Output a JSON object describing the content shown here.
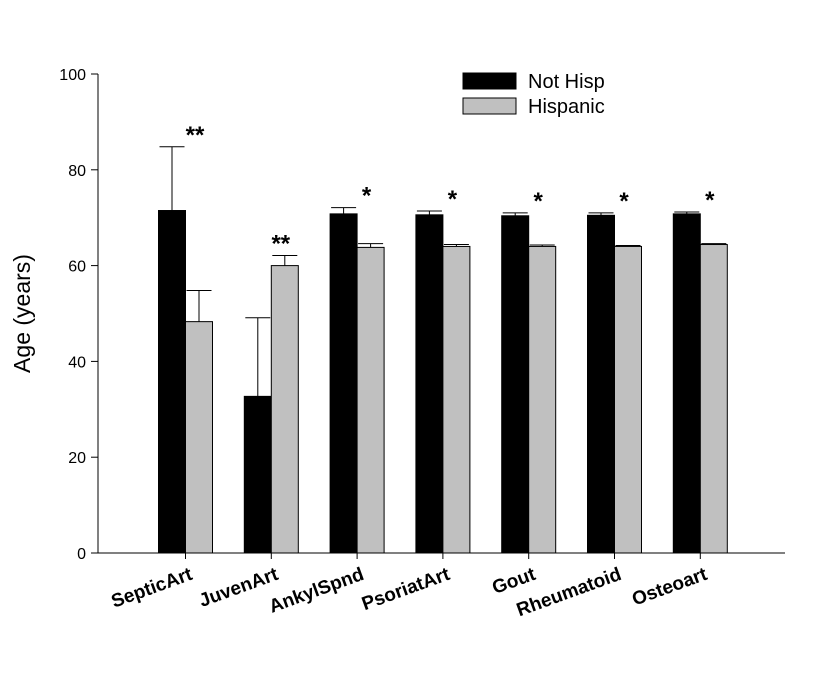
{
  "chart_data": {
    "type": "bar",
    "title": "",
    "xlabel": "",
    "ylabel": "Age (years)",
    "ylim": [
      0,
      100
    ],
    "yticks": [
      0,
      20,
      40,
      60,
      80,
      100
    ],
    "categories": [
      "SepticArt",
      "JuvenArt",
      "AnkylSpnd",
      "PsoriatArt",
      "Gout",
      "Rheumatoid",
      "Osteoart"
    ],
    "series": [
      {
        "name": "Not Hisp",
        "color": "#000000",
        "values": [
          71.5,
          32.7,
          70.8,
          70.6,
          70.4,
          70.5,
          70.8
        ],
        "errors": [
          13.3,
          16.4,
          1.3,
          0.8,
          0.6,
          0.5,
          0.4
        ]
      },
      {
        "name": "Hispanic",
        "color": "#c0c0c0",
        "values": [
          48.3,
          60.0,
          63.8,
          64.0,
          64.0,
          64.0,
          64.4
        ],
        "errors": [
          6.5,
          2.1,
          0.8,
          0.4,
          0.3,
          0.2,
          0.2
        ]
      }
    ],
    "significance": [
      "**",
      "**",
      "*",
      "*",
      "*",
      "*",
      "*"
    ],
    "legend_position": "top-right",
    "grid": false
  }
}
